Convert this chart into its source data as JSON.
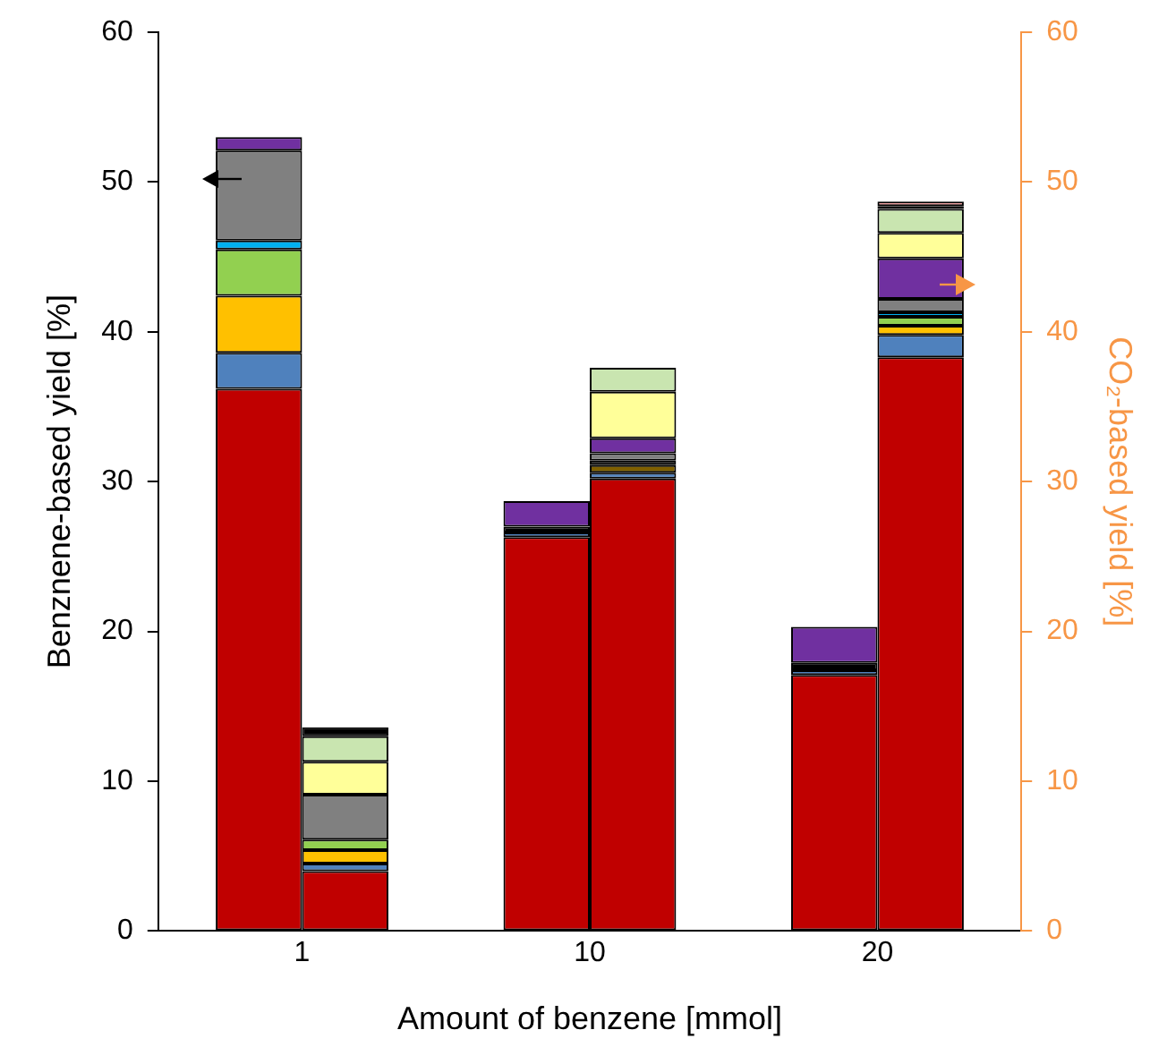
{
  "chart_data": {
    "type": "bar",
    "stacked": true,
    "xlabel": "Amount of benzene [mmol]",
    "ylabel": "Benznene-based yield [%]",
    "y2label": "CO₂-based yield [%]",
    "categories": [
      "1",
      "10",
      "20"
    ],
    "ylim": [
      0,
      60
    ],
    "yticks": [
      0,
      10,
      20,
      30,
      40,
      50,
      60
    ],
    "y2lim": [
      0,
      60
    ],
    "y2ticks": [
      0,
      10,
      20,
      30,
      40,
      50,
      60
    ],
    "grid": false,
    "legend": false,
    "series": [
      {
        "axis": "y",
        "color": "#c00000",
        "values": [
          36.2,
          26.3,
          17.1
        ]
      },
      {
        "axis": "y",
        "color": "#4f81bd",
        "values": [
          2.4,
          0.3,
          0.3
        ]
      },
      {
        "axis": "y",
        "color": "#ffc000",
        "values": [
          3.8,
          null,
          null
        ]
      },
      {
        "axis": "y",
        "color": "#92d050",
        "values": [
          3.1,
          null,
          null
        ]
      },
      {
        "axis": "y",
        "color": "#00b0f0",
        "values": [
          0.6,
          null,
          null
        ]
      },
      {
        "axis": "y",
        "color": "#808080",
        "values": [
          6.0,
          null,
          null
        ]
      },
      {
        "axis": "y",
        "color": "#000000",
        "values": [
          null,
          0.4,
          0.5
        ]
      },
      {
        "axis": "y",
        "color": "#7030a0",
        "values": [
          0.9,
          1.7,
          2.4
        ]
      },
      {
        "axis": "y2",
        "color": "#c00000",
        "values": [
          4.0,
          30.2,
          38.3
        ]
      },
      {
        "axis": "y2",
        "color": "#4f81bd",
        "values": [
          0.5,
          0.4,
          1.5
        ]
      },
      {
        "axis": "y2",
        "color": "#7f6000",
        "values": [
          null,
          0.5,
          null
        ]
      },
      {
        "axis": "y2",
        "color": "#ffc000",
        "values": [
          0.9,
          null,
          0.6
        ]
      },
      {
        "axis": "y2",
        "color": "#92d050",
        "values": [
          0.7,
          null,
          0.6
        ]
      },
      {
        "axis": "y2",
        "color": "#00b0f0",
        "values": [
          null,
          null,
          0.3
        ]
      },
      {
        "axis": "y2",
        "color": "#000000",
        "values": [
          null,
          0.3,
          null
        ]
      },
      {
        "axis": "y2",
        "color": "#808080",
        "values": [
          3.0,
          0.5,
          0.9
        ]
      },
      {
        "axis": "y2",
        "color": "#7030a0",
        "values": [
          null,
          1.0,
          2.7
        ]
      },
      {
        "axis": "y2",
        "color": "#ffff99",
        "values": [
          2.2,
          3.1,
          1.7
        ]
      },
      {
        "axis": "y2",
        "color": "#c9e5b0",
        "values": [
          1.7,
          1.6,
          1.6
        ]
      },
      {
        "axis": "y2",
        "color": "#000000",
        "values": [
          0.6,
          null,
          0.2
        ]
      },
      {
        "axis": "y2",
        "color": "#ff9999",
        "values": [
          null,
          null,
          0.3
        ]
      }
    ]
  }
}
